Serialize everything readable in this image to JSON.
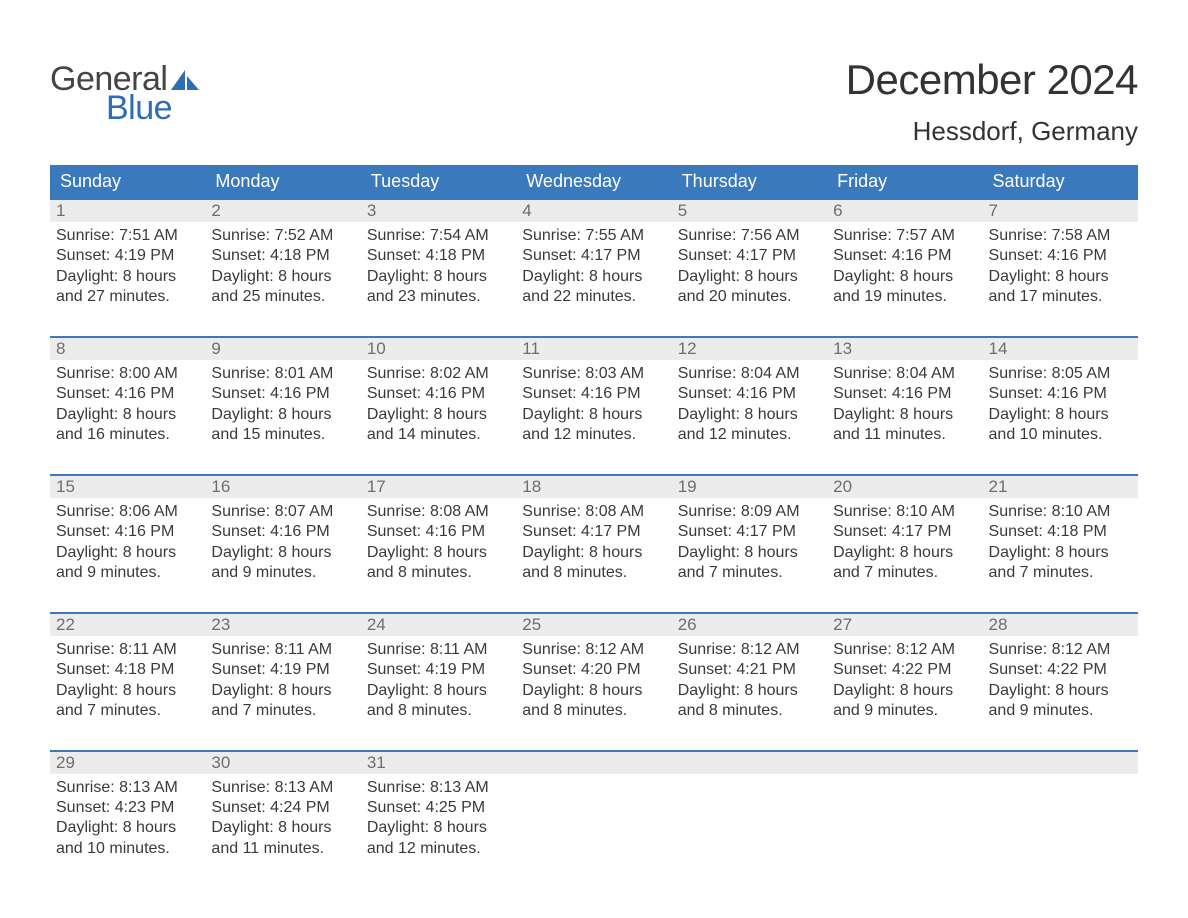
{
  "brand": {
    "word1": "General",
    "word2": "Blue",
    "word1_color": "#444444",
    "word2_color": "#2e6db3",
    "sail_color": "#2e6db3"
  },
  "title": "December 2024",
  "location": "Hessdorf, Germany",
  "colors": {
    "header_bg": "#3a79bb",
    "header_text": "#ffffff",
    "week_border": "#3a79bb",
    "daynum_bg": "#ececec",
    "daynum_text": "#6e6e6e",
    "body_text": "#3a3a3a",
    "page_bg": "#ffffff"
  },
  "typography": {
    "month_title_fontsize": 42,
    "location_fontsize": 26,
    "weekday_fontsize": 18,
    "daynum_fontsize": 17,
    "body_fontsize": 16,
    "logo_fontsize": 34
  },
  "weekdays": [
    "Sunday",
    "Monday",
    "Tuesday",
    "Wednesday",
    "Thursday",
    "Friday",
    "Saturday"
  ],
  "weeks": [
    [
      {
        "n": "1",
        "sunrise": "Sunrise: 7:51 AM",
        "sunset": "Sunset: 4:19 PM",
        "d1": "Daylight: 8 hours",
        "d2": "and 27 minutes."
      },
      {
        "n": "2",
        "sunrise": "Sunrise: 7:52 AM",
        "sunset": "Sunset: 4:18 PM",
        "d1": "Daylight: 8 hours",
        "d2": "and 25 minutes."
      },
      {
        "n": "3",
        "sunrise": "Sunrise: 7:54 AM",
        "sunset": "Sunset: 4:18 PM",
        "d1": "Daylight: 8 hours",
        "d2": "and 23 minutes."
      },
      {
        "n": "4",
        "sunrise": "Sunrise: 7:55 AM",
        "sunset": "Sunset: 4:17 PM",
        "d1": "Daylight: 8 hours",
        "d2": "and 22 minutes."
      },
      {
        "n": "5",
        "sunrise": "Sunrise: 7:56 AM",
        "sunset": "Sunset: 4:17 PM",
        "d1": "Daylight: 8 hours",
        "d2": "and 20 minutes."
      },
      {
        "n": "6",
        "sunrise": "Sunrise: 7:57 AM",
        "sunset": "Sunset: 4:16 PM",
        "d1": "Daylight: 8 hours",
        "d2": "and 19 minutes."
      },
      {
        "n": "7",
        "sunrise": "Sunrise: 7:58 AM",
        "sunset": "Sunset: 4:16 PM",
        "d1": "Daylight: 8 hours",
        "d2": "and 17 minutes."
      }
    ],
    [
      {
        "n": "8",
        "sunrise": "Sunrise: 8:00 AM",
        "sunset": "Sunset: 4:16 PM",
        "d1": "Daylight: 8 hours",
        "d2": "and 16 minutes."
      },
      {
        "n": "9",
        "sunrise": "Sunrise: 8:01 AM",
        "sunset": "Sunset: 4:16 PM",
        "d1": "Daylight: 8 hours",
        "d2": "and 15 minutes."
      },
      {
        "n": "10",
        "sunrise": "Sunrise: 8:02 AM",
        "sunset": "Sunset: 4:16 PM",
        "d1": "Daylight: 8 hours",
        "d2": "and 14 minutes."
      },
      {
        "n": "11",
        "sunrise": "Sunrise: 8:03 AM",
        "sunset": "Sunset: 4:16 PM",
        "d1": "Daylight: 8 hours",
        "d2": "and 12 minutes."
      },
      {
        "n": "12",
        "sunrise": "Sunrise: 8:04 AM",
        "sunset": "Sunset: 4:16 PM",
        "d1": "Daylight: 8 hours",
        "d2": "and 12 minutes."
      },
      {
        "n": "13",
        "sunrise": "Sunrise: 8:04 AM",
        "sunset": "Sunset: 4:16 PM",
        "d1": "Daylight: 8 hours",
        "d2": "and 11 minutes."
      },
      {
        "n": "14",
        "sunrise": "Sunrise: 8:05 AM",
        "sunset": "Sunset: 4:16 PM",
        "d1": "Daylight: 8 hours",
        "d2": "and 10 minutes."
      }
    ],
    [
      {
        "n": "15",
        "sunrise": "Sunrise: 8:06 AM",
        "sunset": "Sunset: 4:16 PM",
        "d1": "Daylight: 8 hours",
        "d2": "and 9 minutes."
      },
      {
        "n": "16",
        "sunrise": "Sunrise: 8:07 AM",
        "sunset": "Sunset: 4:16 PM",
        "d1": "Daylight: 8 hours",
        "d2": "and 9 minutes."
      },
      {
        "n": "17",
        "sunrise": "Sunrise: 8:08 AM",
        "sunset": "Sunset: 4:16 PM",
        "d1": "Daylight: 8 hours",
        "d2": "and 8 minutes."
      },
      {
        "n": "18",
        "sunrise": "Sunrise: 8:08 AM",
        "sunset": "Sunset: 4:17 PM",
        "d1": "Daylight: 8 hours",
        "d2": "and 8 minutes."
      },
      {
        "n": "19",
        "sunrise": "Sunrise: 8:09 AM",
        "sunset": "Sunset: 4:17 PM",
        "d1": "Daylight: 8 hours",
        "d2": "and 7 minutes."
      },
      {
        "n": "20",
        "sunrise": "Sunrise: 8:10 AM",
        "sunset": "Sunset: 4:17 PM",
        "d1": "Daylight: 8 hours",
        "d2": "and 7 minutes."
      },
      {
        "n": "21",
        "sunrise": "Sunrise: 8:10 AM",
        "sunset": "Sunset: 4:18 PM",
        "d1": "Daylight: 8 hours",
        "d2": "and 7 minutes."
      }
    ],
    [
      {
        "n": "22",
        "sunrise": "Sunrise: 8:11 AM",
        "sunset": "Sunset: 4:18 PM",
        "d1": "Daylight: 8 hours",
        "d2": "and 7 minutes."
      },
      {
        "n": "23",
        "sunrise": "Sunrise: 8:11 AM",
        "sunset": "Sunset: 4:19 PM",
        "d1": "Daylight: 8 hours",
        "d2": "and 7 minutes."
      },
      {
        "n": "24",
        "sunrise": "Sunrise: 8:11 AM",
        "sunset": "Sunset: 4:19 PM",
        "d1": "Daylight: 8 hours",
        "d2": "and 8 minutes."
      },
      {
        "n": "25",
        "sunrise": "Sunrise: 8:12 AM",
        "sunset": "Sunset: 4:20 PM",
        "d1": "Daylight: 8 hours",
        "d2": "and 8 minutes."
      },
      {
        "n": "26",
        "sunrise": "Sunrise: 8:12 AM",
        "sunset": "Sunset: 4:21 PM",
        "d1": "Daylight: 8 hours",
        "d2": "and 8 minutes."
      },
      {
        "n": "27",
        "sunrise": "Sunrise: 8:12 AM",
        "sunset": "Sunset: 4:22 PM",
        "d1": "Daylight: 8 hours",
        "d2": "and 9 minutes."
      },
      {
        "n": "28",
        "sunrise": "Sunrise: 8:12 AM",
        "sunset": "Sunset: 4:22 PM",
        "d1": "Daylight: 8 hours",
        "d2": "and 9 minutes."
      }
    ],
    [
      {
        "n": "29",
        "sunrise": "Sunrise: 8:13 AM",
        "sunset": "Sunset: 4:23 PM",
        "d1": "Daylight: 8 hours",
        "d2": "and 10 minutes."
      },
      {
        "n": "30",
        "sunrise": "Sunrise: 8:13 AM",
        "sunset": "Sunset: 4:24 PM",
        "d1": "Daylight: 8 hours",
        "d2": "and 11 minutes."
      },
      {
        "n": "31",
        "sunrise": "Sunrise: 8:13 AM",
        "sunset": "Sunset: 4:25 PM",
        "d1": "Daylight: 8 hours",
        "d2": "and 12 minutes."
      },
      null,
      null,
      null,
      null
    ]
  ]
}
